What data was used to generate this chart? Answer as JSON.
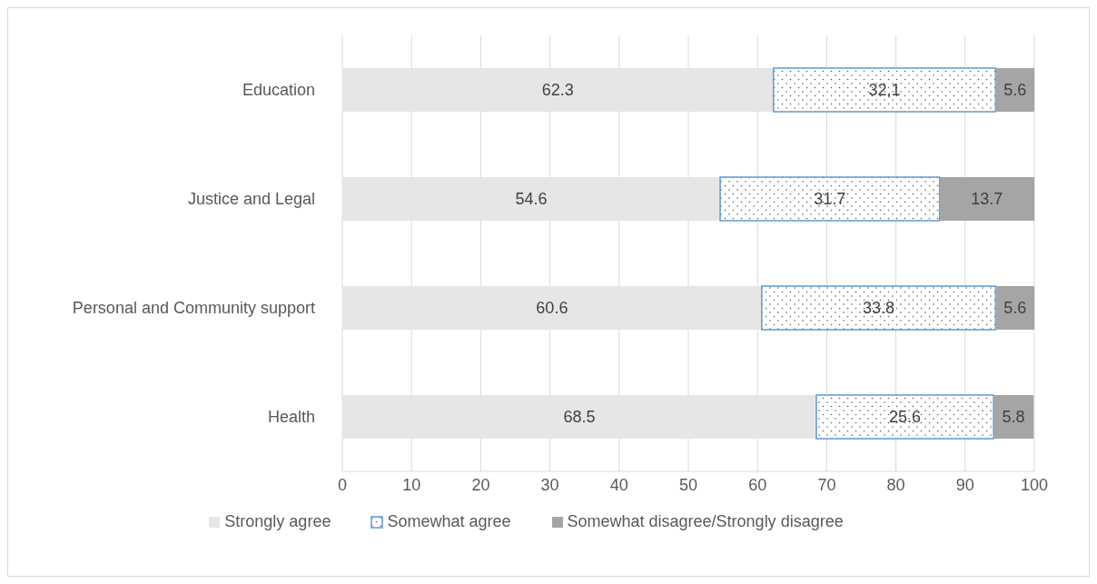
{
  "chart_data": {
    "type": "bar",
    "orientation": "horizontal",
    "stacked": true,
    "categories": [
      "Education",
      "Justice and Legal",
      "Personal and Community support",
      "Health"
    ],
    "series": [
      {
        "name": "Strongly agree",
        "color": "#e7e6e6",
        "values": [
          62.3,
          54.6,
          60.6,
          68.5
        ],
        "value_labels": [
          "62.3",
          "54.6",
          "60.6",
          "68.5"
        ]
      },
      {
        "name": "Somewhat agree",
        "color": "#5b9bd5",
        "values": [
          32.1,
          31.7,
          33.8,
          25.6
        ],
        "value_labels": [
          "32,1",
          "31.7",
          "33.8",
          "25.6"
        ]
      },
      {
        "name": "Somewhat disagree/Strongly disagree",
        "color": "#a5a5a5",
        "values": [
          5.6,
          13.7,
          5.6,
          5.8
        ],
        "value_labels": [
          "5.6",
          "13.7",
          "5.6",
          "5.8"
        ]
      }
    ],
    "xlim": [
      0,
      100
    ],
    "xticks": [
      0,
      10,
      20,
      30,
      40,
      50,
      60,
      70,
      80,
      90,
      100
    ],
    "grid": "x",
    "legend": "bottom"
  }
}
